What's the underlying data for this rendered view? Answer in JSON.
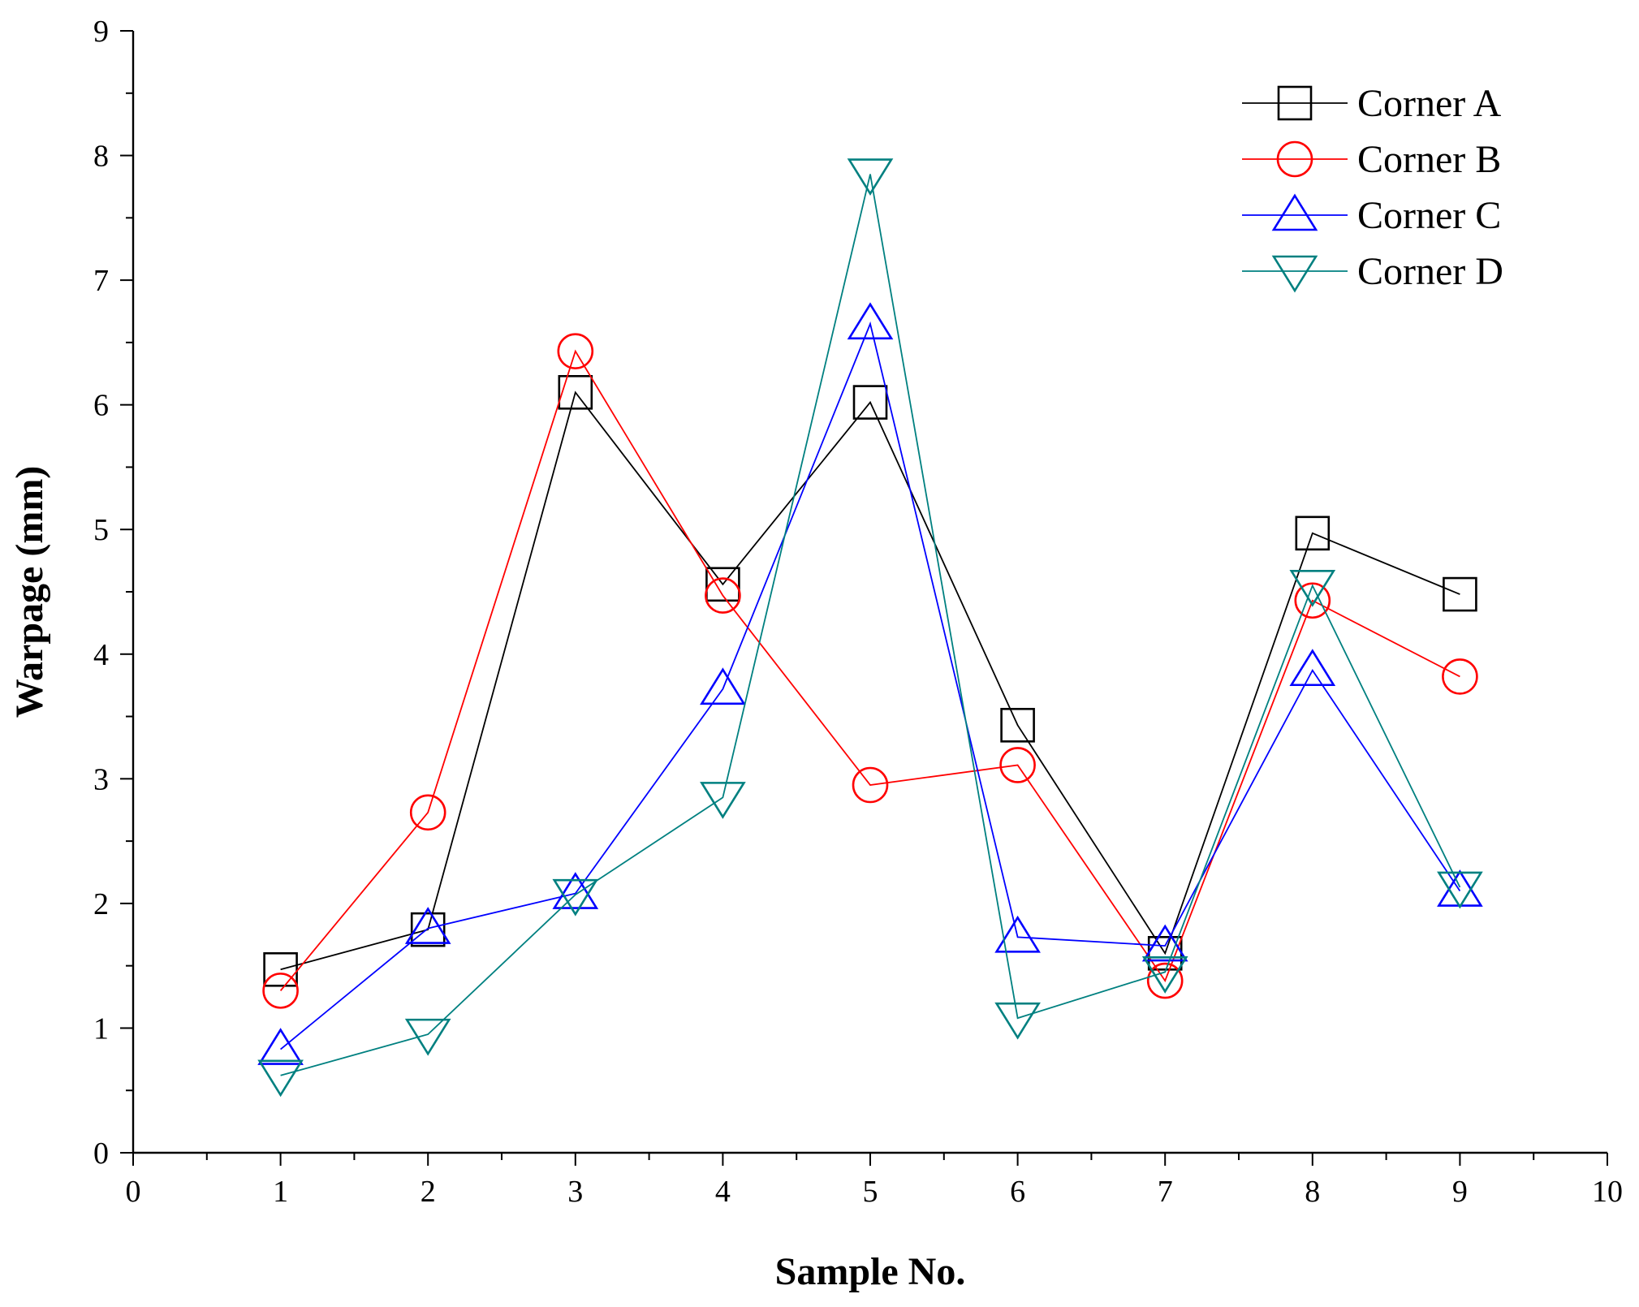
{
  "chart_data": {
    "type": "line",
    "title": "",
    "xlabel": "Sample No.",
    "ylabel": "Warpage (mm)",
    "xlim": [
      0,
      10
    ],
    "ylim": [
      0,
      9
    ],
    "x_ticks": [
      "0",
      "1",
      "2",
      "3",
      "4",
      "5",
      "6",
      "7",
      "8",
      "9",
      "10"
    ],
    "y_ticks": [
      "0",
      "1",
      "2",
      "3",
      "4",
      "5",
      "6",
      "7",
      "8",
      "9"
    ],
    "legend_position": "top-right",
    "x": [
      1,
      2,
      3,
      4,
      5,
      6,
      7,
      8,
      9
    ],
    "series": [
      {
        "name": "Corner A",
        "marker": "square",
        "color": "#000000",
        "values": [
          1.47,
          1.79,
          6.1,
          4.56,
          6.02,
          3.43,
          1.6,
          4.97,
          4.48
        ]
      },
      {
        "name": "Corner B",
        "marker": "circle",
        "color": "#ff0000",
        "values": [
          1.3,
          2.73,
          6.43,
          4.47,
          2.95,
          3.11,
          1.38,
          4.43,
          3.82
        ]
      },
      {
        "name": "Corner C",
        "marker": "triangle-up",
        "color": "#0000ff",
        "values": [
          0.83,
          1.8,
          2.08,
          3.72,
          6.65,
          1.73,
          1.66,
          3.87,
          2.1
        ]
      },
      {
        "name": "Corner D",
        "marker": "triangle-down",
        "color": "#008080",
        "values": [
          0.62,
          0.95,
          2.07,
          2.85,
          7.85,
          1.08,
          1.45,
          4.55,
          2.13
        ]
      }
    ]
  }
}
